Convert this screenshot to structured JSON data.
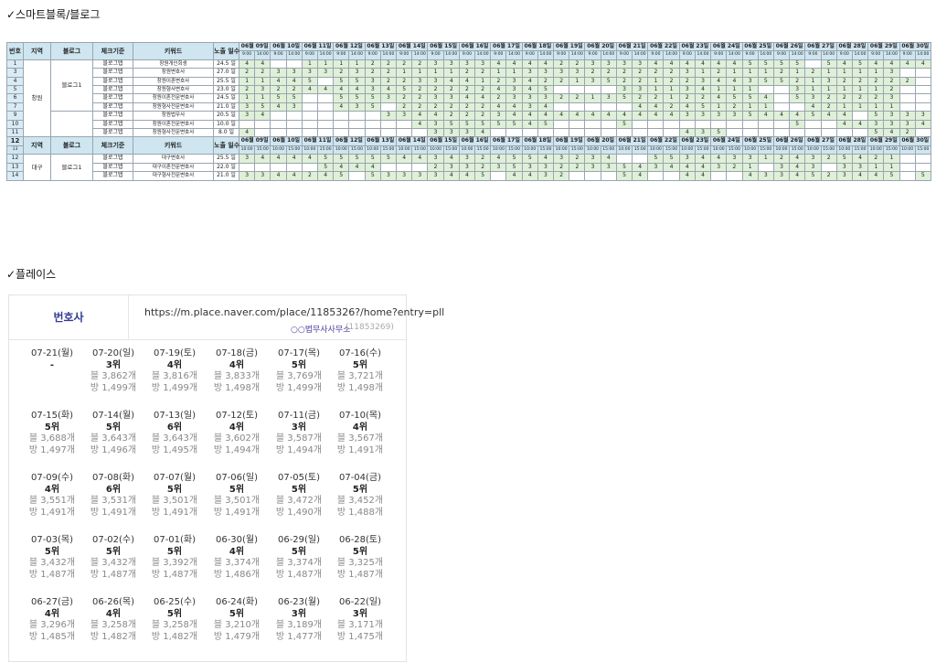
{
  "sections": {
    "blog_title": "✓스마트블록/블로그",
    "place_title": "✓플레이스"
  },
  "sheet": {
    "header": {
      "no": "번호",
      "region": "지역",
      "blog": "블로그",
      "criteria": "체크기준",
      "keyword": "키워드",
      "exposure": "노출 일수"
    },
    "dates": [
      "06월 09일",
      "06월 10일",
      "06월 11일",
      "06월 12일",
      "06월 13일",
      "06월 14일",
      "06월 15일",
      "06월 16일",
      "06월 17일",
      "06월 18일",
      "06월 19일",
      "06월 20일",
      "06월 21일",
      "06월 22일",
      "06월 23일",
      "06월 24일",
      "06월 25일",
      "06월 26일",
      "06월 27일",
      "06월 28일",
      "06월 29일",
      "06월 30일"
    ],
    "times1": [
      "9:00",
      "14:00"
    ],
    "times2": [
      "10:00",
      "15:00"
    ],
    "groups": [
      {
        "region": "창원",
        "blog": "블로그1",
        "rows": [
          {
            "no": "1",
            "crit": "블로그탭",
            "kw": "창원개인회생",
            "days": "24.5 일",
            "v": [
              "4",
              "4",
              "",
              "",
              "1",
              "1",
              "1",
              "1",
              "2",
              "2",
              "2",
              "2",
              "3",
              "3",
              "3",
              "3",
              "4",
              "4",
              "4",
              "4",
              "2",
              "2",
              "3",
              "3",
              "3",
              "3",
              "4",
              "4",
              "4",
              "4",
              "4",
              "4",
              "5",
              "5",
              "5",
              "5",
              "",
              "5",
              "4",
              "5",
              "4",
              "4",
              "4",
              "4"
            ]
          },
          {
            "no": "3",
            "crit": "블로그탭",
            "kw": "창원변호사",
            "days": "27.0 일",
            "v": [
              "2",
              "2",
              "3",
              "3",
              "3",
              "3",
              "2",
              "3",
              "2",
              "2",
              "1",
              "1",
              "1",
              "1",
              "2",
              "2",
              "1",
              "1",
              "3",
              "3",
              "3",
              "3",
              "2",
              "2",
              "2",
              "2",
              "2",
              "2",
              "3",
              "1",
              "2",
              "1",
              "1",
              "1",
              "2",
              "1",
              "2",
              "1",
              "1",
              "1",
              "1",
              "3",
              "",
              ""
            ]
          },
          {
            "no": "4",
            "crit": "블로그탭",
            "kw": "창원이혼변호사",
            "days": "25.5 일",
            "v": [
              "1",
              "1",
              "4",
              "4",
              "5",
              "",
              "5",
              "5",
              "3",
              "2",
              "2",
              "3",
              "3",
              "4",
              "4",
              "1",
              "2",
              "3",
              "4",
              "2",
              "2",
              "1",
              "3",
              "5",
              "2",
              "2",
              "1",
              "2",
              "2",
              "3",
              "4",
              "4",
              "3",
              "5",
              "5",
              "2",
              "1",
              "3",
              "2",
              "2",
              "2",
              "2",
              "2",
              ""
            ]
          },
          {
            "no": "5",
            "crit": "블로그탭",
            "kw": "창원형사변호사",
            "days": "23.0 일",
            "v": [
              "2",
              "3",
              "2",
              "2",
              "4",
              "4",
              "4",
              "4",
              "3",
              "4",
              "5",
              "2",
              "2",
              "2",
              "2",
              "2",
              "4",
              "3",
              "4",
              "5",
              "",
              "",
              "",
              "",
              "3",
              "3",
              "1",
              "1",
              "3",
              "4",
              "1",
              "1",
              "1",
              "",
              "",
              "3",
              "1",
              "1",
              "1",
              "1",
              "1",
              "2",
              "",
              ""
            ]
          },
          {
            "no": "6",
            "crit": "블로그탭",
            "kw": "창원이혼전문변호사",
            "days": "24.5 일",
            "v": [
              "1",
              "1",
              "5",
              "5",
              "",
              "",
              "5",
              "5",
              "5",
              "3",
              "2",
              "2",
              "3",
              "3",
              "4",
              "4",
              "2",
              "3",
              "3",
              "3",
              "2",
              "2",
              "1",
              "3",
              "5",
              "2",
              "2",
              "1",
              "2",
              "2",
              "4",
              "5",
              "5",
              "4",
              "",
              "5",
              "3",
              "2",
              "2",
              "2",
              "2",
              "3",
              "",
              ""
            ]
          },
          {
            "no": "7",
            "crit": "블로그탭",
            "kw": "창원형사전문변호사",
            "days": "21.0 일",
            "v": [
              "3",
              "5",
              "4",
              "3",
              "",
              "",
              "4",
              "3",
              "5",
              "",
              "2",
              "2",
              "2",
              "2",
              "2",
              "2",
              "4",
              "4",
              "3",
              "4",
              "",
              "",
              "",
              "",
              "",
              "4",
              "4",
              "2",
              "4",
              "5",
              "1",
              "2",
              "1",
              "1",
              "",
              "",
              "4",
              "2",
              "1",
              "1",
              "1",
              "1",
              "",
              ""
            ]
          }
        ]
      },
      {
        "region": "",
        "blog": "",
        "rows": [
          {
            "no": "9",
            "crit": "블로그탭",
            "kw": "창원법무사",
            "days": "20.5 일",
            "v": [
              "3",
              "4",
              "",
              "",
              "",
              "",
              "",
              "",
              "",
              "3",
              "3",
              "4",
              "4",
              "2",
              "2",
              "2",
              "3",
              "4",
              "4",
              "4",
              "4",
              "4",
              "4",
              "4",
              "4",
              "4",
              "4",
              "4",
              "3",
              "3",
              "3",
              "3",
              "5",
              "4",
              "4",
              "4",
              "5",
              "4",
              "4",
              "",
              "5",
              "3",
              "3",
              "3"
            ]
          },
          {
            "no": "10",
            "crit": "블로그탭",
            "kw": "창원이혼전문변호사",
            "days": "10.0 일",
            "v": [
              "",
              "",
              "",
              "",
              "",
              "",
              "",
              "",
              "",
              "",
              "",
              "4",
              "3",
              "5",
              "5",
              "5",
              "5",
              "5",
              "4",
              "5",
              "",
              "",
              "",
              "",
              "5",
              "",
              "",
              "",
              "",
              "",
              "",
              "",
              "",
              "",
              "",
              "5",
              "",
              "",
              "4",
              "4",
              "3",
              "3",
              "3",
              "4"
            ]
          },
          {
            "no": "11",
            "crit": "블로그탭",
            "kw": "창원형사전문변호사",
            "days": "8.0 일",
            "v": [
              "4",
              "",
              "",
              "",
              "",
              "",
              "",
              "",
              "",
              "",
              "",
              "",
              "3",
              "3",
              "3",
              "4",
              "",
              "",
              "",
              "",
              "",
              "",
              "",
              "",
              "",
              "",
              "",
              "",
              "4",
              "3",
              "5",
              "",
              "",
              "",
              "",
              "",
              "",
              "",
              "",
              "",
              "5",
              "4",
              "2",
              ""
            ]
          }
        ]
      },
      {
        "region": "대구",
        "blog": "블로그1",
        "rows": [
          {
            "no": "12",
            "crit": "블로그탭",
            "kw": "대구변호사",
            "days": "25.5 일",
            "v": [
              "3",
              "4",
              "4",
              "4",
              "4",
              "5",
              "5",
              "5",
              "5",
              "5",
              "4",
              "4",
              "3",
              "4",
              "3",
              "2",
              "4",
              "5",
              "5",
              "4",
              "3",
              "2",
              "3",
              "4",
              "",
              "",
              "5",
              "5",
              "3",
              "4",
              "4",
              "3",
              "3",
              "1",
              "2",
              "4",
              "3",
              "2",
              "5",
              "4",
              "2",
              "1",
              "",
              ""
            ]
          },
          {
            "no": "13",
            "crit": "블로그탭",
            "kw": "대구이혼전문변호사",
            "days": "22.0 일",
            "v": [
              "",
              "",
              "",
              "",
              "",
              "5",
              "4",
              "4",
              "4",
              "",
              "",
              "",
              "2",
              "3",
              "3",
              "2",
              "3",
              "5",
              "3",
              "3",
              "2",
              "2",
              "3",
              "3",
              "5",
              "4",
              "3",
              "4",
              "4",
              "4",
              "3",
              "2",
              "1",
              "",
              "3",
              "4",
              "3",
              "",
              "3",
              "3",
              "1",
              "1",
              "",
              ""
            ]
          },
          {
            "no": "14",
            "crit": "블로그탭",
            "kw": "대구형사전문변호사",
            "days": "21.0 일",
            "v": [
              "3",
              "3",
              "4",
              "4",
              "2",
              "4",
              "5",
              "",
              "5",
              "3",
              "3",
              "3",
              "3",
              "4",
              "4",
              "5",
              "",
              "4",
              "4",
              "3",
              "2",
              "",
              "",
              "",
              "5",
              "4",
              "",
              "",
              "4",
              "4",
              "",
              "",
              "4",
              "3",
              "3",
              "4",
              "5",
              "2",
              "3",
              "4",
              "4",
              "5",
              "",
              "5"
            ]
          }
        ]
      }
    ]
  },
  "place": {
    "category": "번호사",
    "url": "https://m.place.naver.com/place/1185326?/home?entry=pll",
    "business_name": "○○법무사사무소",
    "place_id": "(11853269)",
    "rank_prefix": "",
    "days": [
      {
        "date": "07-21(월)",
        "rank": "-",
        "blog": "",
        "visit": ""
      },
      {
        "date": "07-20(일)",
        "rank": "3위",
        "blog": "블 3,862개",
        "visit": "방 1,499개"
      },
      {
        "date": "07-19(토)",
        "rank": "4위",
        "blog": "블 3,816개",
        "visit": "방 1,499개"
      },
      {
        "date": "07-18(금)",
        "rank": "4위",
        "blog": "블 3,833개",
        "visit": "방 1,498개"
      },
      {
        "date": "07-17(목)",
        "rank": "5위",
        "blog": "블 3,769개",
        "visit": "방 1,499개"
      },
      {
        "date": "07-16(수)",
        "rank": "5위",
        "blog": "블 3,721개",
        "visit": "방 1,498개"
      },
      {
        "date": "07-15(화)",
        "rank": "5위",
        "blog": "블 3,688개",
        "visit": "방 1,497개"
      },
      {
        "date": "07-14(월)",
        "rank": "5위",
        "blog": "블 3,643개",
        "visit": "방 1,496개"
      },
      {
        "date": "07-13(일)",
        "rank": "6위",
        "blog": "블 3,643개",
        "visit": "방 1,495개"
      },
      {
        "date": "07-12(토)",
        "rank": "4위",
        "blog": "블 3,602개",
        "visit": "방 1,494개"
      },
      {
        "date": "07-11(금)",
        "rank": "3위",
        "blog": "블 3,587개",
        "visit": "방 1,494개"
      },
      {
        "date": "07-10(목)",
        "rank": "4위",
        "blog": "블 3,567개",
        "visit": "방 1,491개"
      },
      {
        "date": "07-09(수)",
        "rank": "4위",
        "blog": "블 3,551개",
        "visit": "방 1,491개"
      },
      {
        "date": "07-08(화)",
        "rank": "6위",
        "blog": "블 3,531개",
        "visit": "방 1,491개"
      },
      {
        "date": "07-07(월)",
        "rank": "5위",
        "blog": "블 3,501개",
        "visit": "방 1,491개"
      },
      {
        "date": "07-06(일)",
        "rank": "5위",
        "blog": "블 3,501개",
        "visit": "방 1,491개"
      },
      {
        "date": "07-05(토)",
        "rank": "5위",
        "blog": "블 3,472개",
        "visit": "방 1,490개"
      },
      {
        "date": "07-04(금)",
        "rank": "5위",
        "blog": "블 3,452개",
        "visit": "방 1,488개"
      },
      {
        "date": "07-03(목)",
        "rank": "5위",
        "blog": "블 3,432개",
        "visit": "방 1,487개"
      },
      {
        "date": "07-02(수)",
        "rank": "5위",
        "blog": "블 3,432개",
        "visit": "방 1,487개"
      },
      {
        "date": "07-01(화)",
        "rank": "5위",
        "blog": "블 3,392개",
        "visit": "방 1,487개"
      },
      {
        "date": "06-30(월)",
        "rank": "4위",
        "blog": "블 3,374개",
        "visit": "방 1,486개"
      },
      {
        "date": "06-29(일)",
        "rank": "5위",
        "blog": "블 3,374개",
        "visit": "방 1,487개"
      },
      {
        "date": "06-28(토)",
        "rank": "5위",
        "blog": "블 3,325개",
        "visit": "방 1,487개"
      },
      {
        "date": "06-27(금)",
        "rank": "4위",
        "blog": "블 3,296개",
        "visit": "방 1,485개"
      },
      {
        "date": "06-26(목)",
        "rank": "4위",
        "blog": "블 3,258개",
        "visit": "방 1,482개"
      },
      {
        "date": "06-25(수)",
        "rank": "5위",
        "blog": "블 3,258개",
        "visit": "방 1,482개"
      },
      {
        "date": "06-24(화)",
        "rank": "5위",
        "blog": "블 3,210개",
        "visit": "방 1,479개"
      },
      {
        "date": "06-23(월)",
        "rank": "3위",
        "blog": "블 3,189개",
        "visit": "방 1,477개"
      },
      {
        "date": "06-22(일)",
        "rank": "3위",
        "blog": "블 3,171개",
        "visit": "방 1,475개"
      }
    ]
  }
}
